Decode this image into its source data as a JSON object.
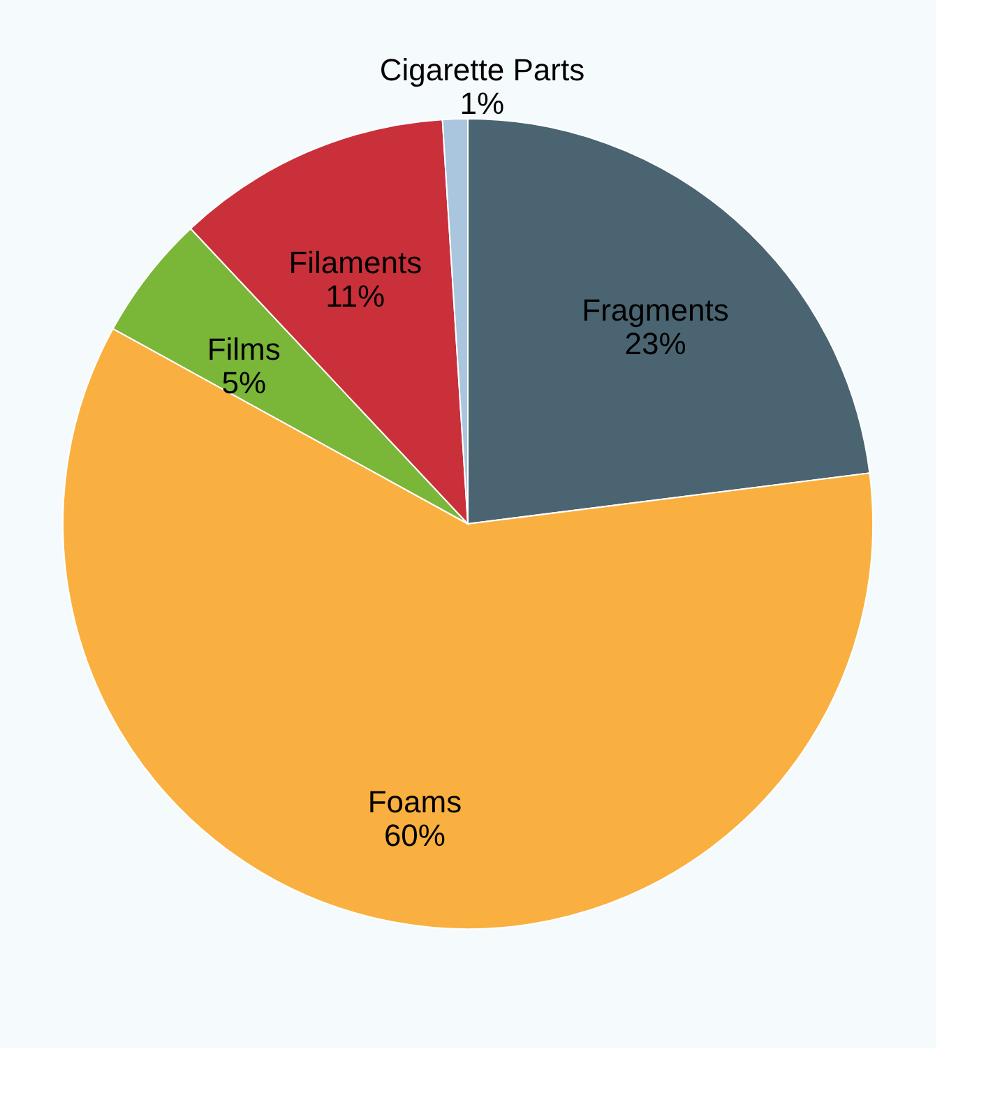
{
  "chart_data": {
    "type": "pie",
    "categories": [
      "Fragments",
      "Foams",
      "Films",
      "Filaments",
      "Cigarette Parts"
    ],
    "values": [
      23,
      60,
      5,
      11,
      1
    ],
    "value_labels": [
      "23%",
      "60%",
      "5%",
      "11%",
      "1%"
    ],
    "colors": [
      "#4a6472",
      "#f9b040",
      "#7ab638",
      "#c9303a",
      "#a9c6de"
    ],
    "legend": false
  }
}
